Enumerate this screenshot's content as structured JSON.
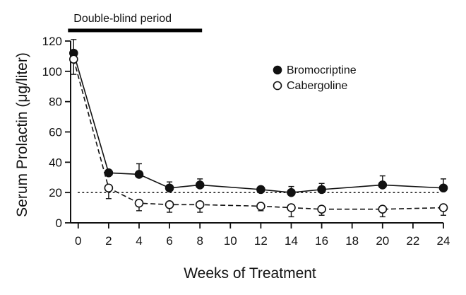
{
  "chart_data": {
    "type": "line",
    "title": "",
    "xlabel": "Weeks of Treatment",
    "ylabel": "Serum Prolactin (μg/liter)",
    "xlim": [
      -0.5,
      24
    ],
    "ylim": [
      0,
      120
    ],
    "x_ticks": [
      0,
      2,
      4,
      6,
      8,
      10,
      12,
      14,
      16,
      18,
      20,
      22,
      24
    ],
    "y_ticks": [
      0,
      20,
      40,
      60,
      80,
      100,
      120
    ],
    "x_tick_labels": [
      "0",
      "2",
      "4",
      "6",
      "8",
      "10",
      "12",
      "14",
      "16",
      "18",
      "20",
      "22",
      "24"
    ],
    "y_tick_labels": [
      "0",
      "20",
      "40",
      "60",
      "80",
      "100",
      "120"
    ],
    "grid": false,
    "legend_position": "top-right",
    "series": [
      {
        "name": "Bromocriptine",
        "marker": "filled-circle",
        "line_style": "solid",
        "x": [
          -0.3,
          2,
          4,
          6,
          8,
          12,
          14,
          16,
          20,
          24
        ],
        "y": [
          112,
          33,
          32,
          23,
          25,
          22,
          20,
          22,
          25,
          23
        ],
        "error_upper": [
          9,
          1,
          7,
          4,
          4,
          2,
          4,
          4,
          6,
          6
        ]
      },
      {
        "name": "Cabergoline",
        "marker": "open-circle",
        "line_style": "dashed",
        "x": [
          -0.3,
          2,
          4,
          6,
          8,
          12,
          14,
          16,
          20,
          24
        ],
        "y": [
          108,
          23,
          13,
          12,
          12,
          11,
          10,
          9,
          9,
          10
        ],
        "error_lower": [
          10,
          7,
          5,
          5,
          5,
          3,
          6,
          4,
          5,
          5
        ]
      }
    ],
    "reference_line": {
      "y": 20,
      "style": "dotted"
    },
    "annotations": [
      {
        "text": "Double-blind period",
        "x_start": -0.3,
        "x_end": 8
      }
    ]
  }
}
